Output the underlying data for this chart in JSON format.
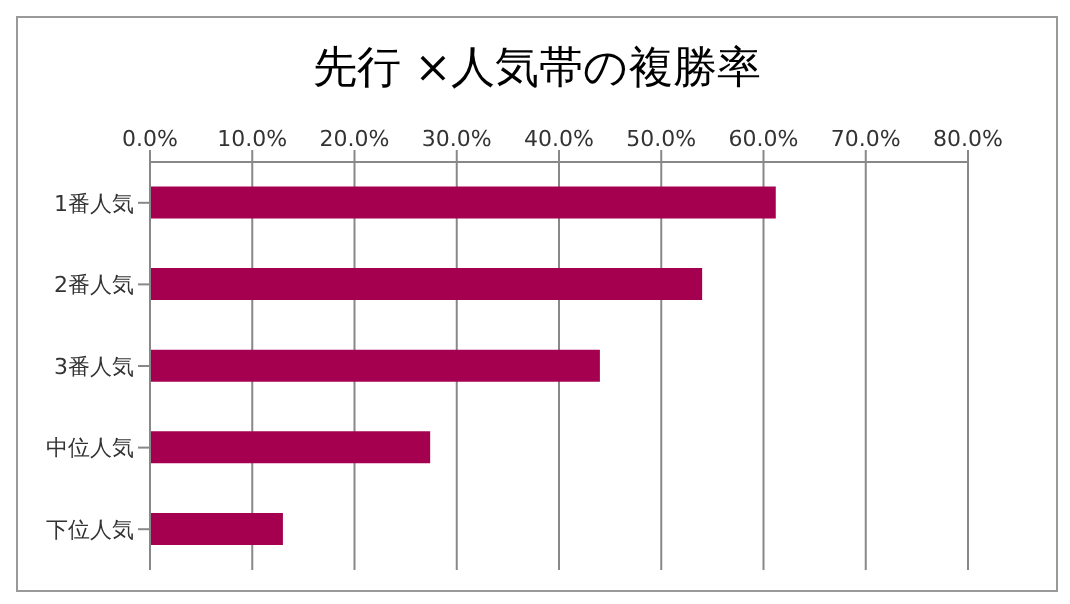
{
  "chart_data": {
    "type": "bar",
    "orientation": "horizontal",
    "title": "先行 ×人気帯の複勝率",
    "categories": [
      "1番人気",
      "2番人気",
      "3番人気",
      "中位人気",
      "下位人気"
    ],
    "values": [
      61.2,
      54.0,
      44.0,
      27.4,
      13.0
    ],
    "color": "#a50050",
    "xlim": [
      0,
      80
    ],
    "xticks": [
      {
        "value": 0,
        "label": "0.0%"
      },
      {
        "value": 10,
        "label": "10.0%"
      },
      {
        "value": 20,
        "label": "20.0%"
      },
      {
        "value": 30,
        "label": "30.0%"
      },
      {
        "value": 40,
        "label": "40.0%"
      },
      {
        "value": 50,
        "label": "50.0%"
      },
      {
        "value": 60,
        "label": "60.0%"
      },
      {
        "value": 70,
        "label": "70.0%"
      },
      {
        "value": 80,
        "label": "80.0%"
      }
    ],
    "grid": "x"
  }
}
